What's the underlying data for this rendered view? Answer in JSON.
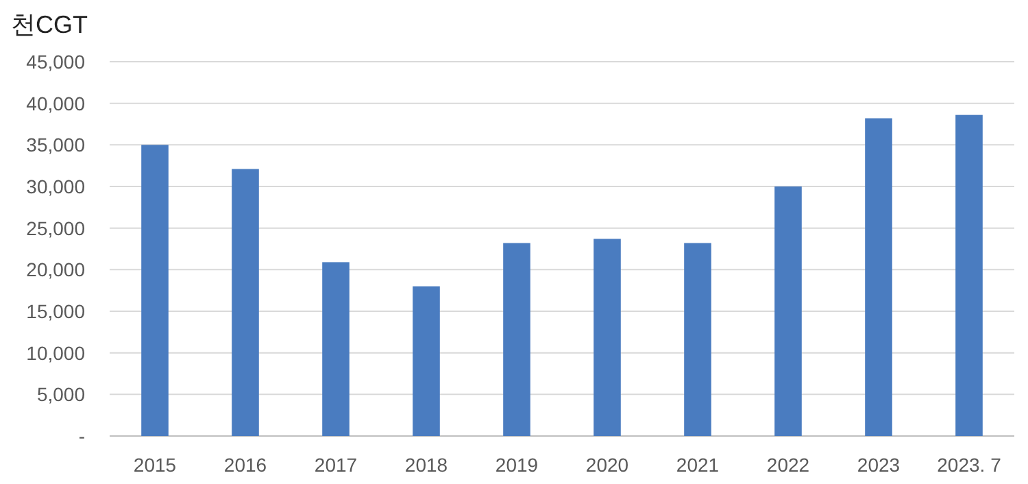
{
  "chart_data": {
    "type": "bar",
    "ylabel": "천CGT",
    "categories": [
      "2015",
      "2016",
      "2017",
      "2018",
      "2019",
      "2020",
      "2021",
      "2022",
      "2023",
      "2023. 7"
    ],
    "values": [
      35000,
      32100,
      20900,
      18000,
      23200,
      23700,
      23200,
      30000,
      38200,
      38600
    ],
    "color": "#4a7cc0",
    "ylim": [
      0,
      45000
    ],
    "yticks": [
      {
        "value": 0,
        "label": "-"
      },
      {
        "value": 5000,
        "label": "5,000"
      },
      {
        "value": 10000,
        "label": "10,000"
      },
      {
        "value": 15000,
        "label": "15,000"
      },
      {
        "value": 20000,
        "label": "20,000"
      },
      {
        "value": 25000,
        "label": "25,000"
      },
      {
        "value": 30000,
        "label": "30,000"
      },
      {
        "value": 35000,
        "label": "35,000"
      },
      {
        "value": 40000,
        "label": "40,000"
      },
      {
        "value": 45000,
        "label": "45,000"
      }
    ],
    "grid": "y"
  }
}
